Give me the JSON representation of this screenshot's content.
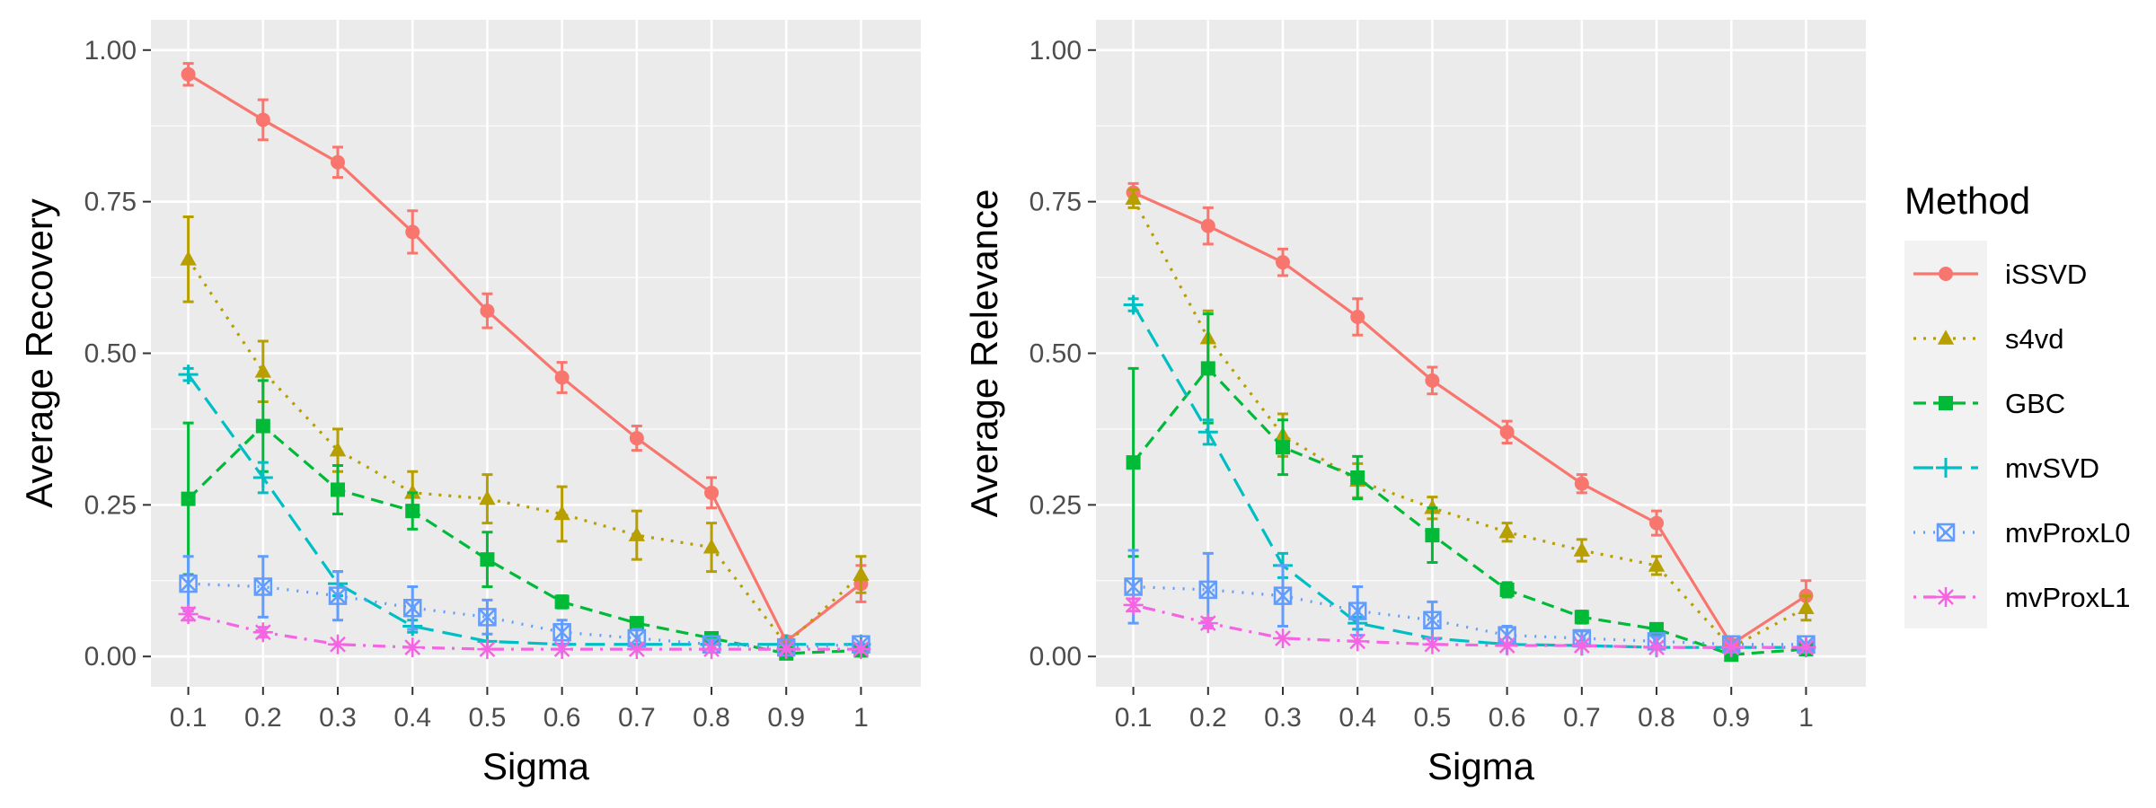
{
  "chart_data": [
    {
      "type": "line",
      "panel": "left",
      "xlabel": "Sigma",
      "ylabel": "Average Recovery",
      "categories": [
        "0.1",
        "0.2",
        "0.3",
        "0.4",
        "0.5",
        "0.6",
        "0.7",
        "0.8",
        "0.9",
        "1"
      ],
      "y_ticks": [
        "0.00",
        "0.25",
        "0.50",
        "0.75",
        "1.00"
      ],
      "ylim": [
        -0.05,
        1.05
      ],
      "grid": true,
      "series": [
        {
          "name": "iSSVD",
          "color": "#F8766D",
          "marker": "circle",
          "dash": "solid",
          "values": [
            0.96,
            0.885,
            0.815,
            0.7,
            0.57,
            0.46,
            0.36,
            0.27,
            0.025,
            0.12
          ],
          "err": [
            0.018,
            0.033,
            0.025,
            0.035,
            0.028,
            0.025,
            0.02,
            0.025,
            0.008,
            0.03
          ]
        },
        {
          "name": "s4vd",
          "color": "#B79F00",
          "marker": "triangle",
          "dash": "dotted",
          "values": [
            0.655,
            0.47,
            0.34,
            0.27,
            0.26,
            0.235,
            0.2,
            0.18,
            0.02,
            0.135
          ],
          "err": [
            0.07,
            0.05,
            0.035,
            0.035,
            0.04,
            0.045,
            0.04,
            0.04,
            0.006,
            0.03
          ]
        },
        {
          "name": "GBC",
          "color": "#00BA38",
          "marker": "square",
          "dash": "dashed",
          "values": [
            0.26,
            0.38,
            0.275,
            0.24,
            0.16,
            0.09,
            0.055,
            0.03,
            0.005,
            0.01
          ],
          "err": [
            0.125,
            0.075,
            0.04,
            0.03,
            0.045,
            0.01,
            0.008,
            0.006,
            0.004,
            0.004
          ]
        },
        {
          "name": "mvSVD",
          "color": "#00BFC4",
          "marker": "plus",
          "dash": "longdash",
          "values": [
            0.465,
            0.295,
            0.12,
            0.05,
            0.025,
            0.02,
            0.02,
            0.02,
            0.02,
            0.02
          ],
          "err": [
            0.01,
            0.025,
            0.02,
            0.01,
            0.006,
            0.004,
            0.004,
            0.004,
            0.004,
            0.004
          ]
        },
        {
          "name": "mvProxL0",
          "color": "#619CFF",
          "marker": "squarex",
          "dash": "dotdense",
          "values": [
            0.12,
            0.115,
            0.1,
            0.08,
            0.065,
            0.04,
            0.03,
            0.02,
            0.015,
            0.02
          ],
          "err": [
            0.045,
            0.05,
            0.04,
            0.035,
            0.028,
            0.02,
            0.015,
            0.008,
            0.005,
            0.006
          ]
        },
        {
          "name": "mvProxL1",
          "color": "#F564E3",
          "marker": "star",
          "dash": "dotdash",
          "values": [
            0.07,
            0.04,
            0.02,
            0.015,
            0.012,
            0.012,
            0.012,
            0.012,
            0.012,
            0.012
          ],
          "err": [
            0.01,
            0.008,
            0.004,
            0.003,
            0.003,
            0.003,
            0.003,
            0.003,
            0.003,
            0.003
          ]
        }
      ]
    },
    {
      "type": "line",
      "panel": "right",
      "xlabel": "Sigma",
      "ylabel": "Average Relevance",
      "categories": [
        "0.1",
        "0.2",
        "0.3",
        "0.4",
        "0.5",
        "0.6",
        "0.7",
        "0.8",
        "0.9",
        "1"
      ],
      "y_ticks": [
        "0.00",
        "0.25",
        "0.50",
        "0.75",
        "1.00"
      ],
      "ylim": [
        -0.05,
        1.05
      ],
      "grid": true,
      "series": [
        {
          "name": "iSSVD",
          "color": "#F8766D",
          "marker": "circle",
          "dash": "solid",
          "values": [
            0.765,
            0.71,
            0.65,
            0.56,
            0.455,
            0.37,
            0.285,
            0.22,
            0.02,
            0.1
          ],
          "err": [
            0.015,
            0.03,
            0.022,
            0.03,
            0.022,
            0.018,
            0.015,
            0.02,
            0.006,
            0.025
          ]
        },
        {
          "name": "s4vd",
          "color": "#B79F00",
          "marker": "triangle",
          "dash": "dotted",
          "values": [
            0.755,
            0.525,
            0.365,
            0.29,
            0.245,
            0.205,
            0.175,
            0.15,
            0.015,
            0.08
          ],
          "err": [
            0.015,
            0.045,
            0.035,
            0.028,
            0.018,
            0.015,
            0.018,
            0.015,
            0.005,
            0.02
          ]
        },
        {
          "name": "GBC",
          "color": "#00BA38",
          "marker": "square",
          "dash": "dashed",
          "values": [
            0.32,
            0.475,
            0.345,
            0.295,
            0.2,
            0.11,
            0.065,
            0.045,
            0.003,
            0.012
          ],
          "err": [
            0.155,
            0.09,
            0.045,
            0.035,
            0.045,
            0.012,
            0.01,
            0.006,
            0.003,
            0.004
          ]
        },
        {
          "name": "mvSVD",
          "color": "#00BFC4",
          "marker": "plus",
          "dash": "longdash",
          "values": [
            0.58,
            0.37,
            0.15,
            0.055,
            0.03,
            0.02,
            0.018,
            0.015,
            0.015,
            0.015
          ],
          "err": [
            0.01,
            0.02,
            0.02,
            0.01,
            0.006,
            0.004,
            0.004,
            0.004,
            0.004,
            0.004
          ]
        },
        {
          "name": "mvProxL0",
          "color": "#619CFF",
          "marker": "squarex",
          "dash": "dotdense",
          "values": [
            0.115,
            0.11,
            0.1,
            0.075,
            0.06,
            0.035,
            0.03,
            0.025,
            0.02,
            0.02
          ],
          "err": [
            0.06,
            0.06,
            0.05,
            0.04,
            0.03,
            0.015,
            0.012,
            0.008,
            0.006,
            0.006
          ]
        },
        {
          "name": "mvProxL1",
          "color": "#F564E3",
          "marker": "star",
          "dash": "dotdash",
          "values": [
            0.085,
            0.055,
            0.03,
            0.025,
            0.02,
            0.018,
            0.018,
            0.015,
            0.015,
            0.015
          ],
          "err": [
            0.01,
            0.008,
            0.005,
            0.004,
            0.003,
            0.003,
            0.003,
            0.003,
            0.003,
            0.003
          ]
        }
      ]
    }
  ],
  "legend": {
    "title": "Method",
    "placement": "right",
    "items": [
      "iSSVD",
      "s4vd",
      "GBC",
      "mvSVD",
      "mvProxL0",
      "mvProxL1"
    ]
  }
}
